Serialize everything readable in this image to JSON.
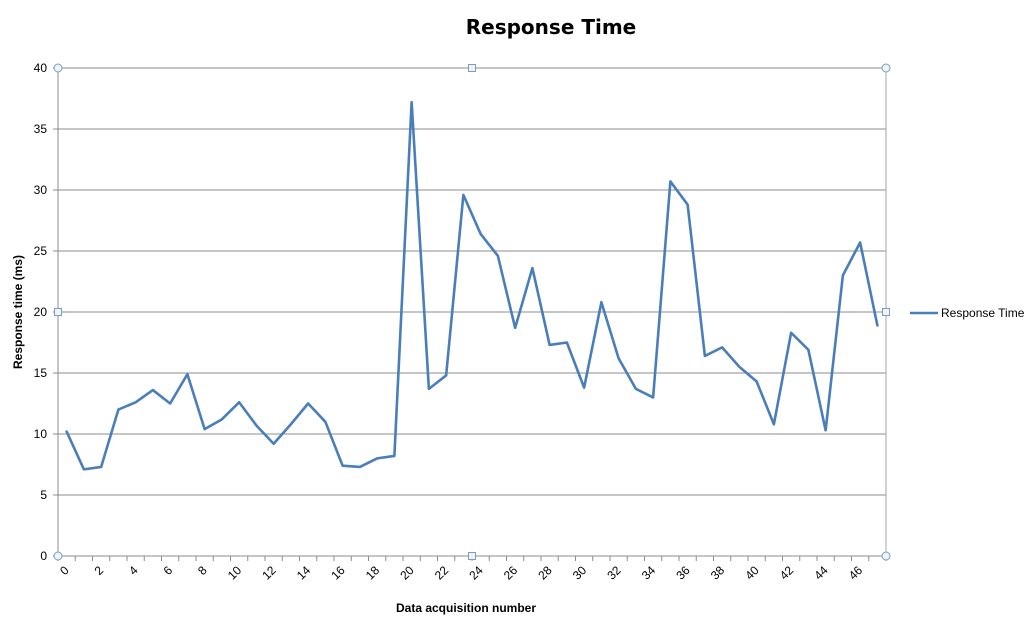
{
  "chart_data": {
    "type": "line",
    "title": "Response Time",
    "xlabel": "Data acquisition number",
    "ylabel": "Response time (ms)",
    "ylim": [
      0,
      40
    ],
    "yticks": [
      0,
      5,
      10,
      15,
      20,
      25,
      30,
      35,
      40
    ],
    "xticks": [
      0,
      2,
      4,
      6,
      8,
      10,
      12,
      14,
      16,
      18,
      20,
      22,
      24,
      26,
      28,
      30,
      32,
      34,
      36,
      38,
      40,
      42,
      44,
      46
    ],
    "grid": true,
    "legend_position": "right",
    "x": [
      0,
      1,
      2,
      3,
      4,
      5,
      6,
      7,
      8,
      9,
      10,
      11,
      12,
      13,
      14,
      15,
      16,
      17,
      18,
      19,
      20,
      21,
      22,
      23,
      24,
      25,
      26,
      27,
      28,
      29,
      30,
      31,
      32,
      33,
      34,
      35,
      36,
      37,
      38,
      39,
      40,
      41,
      42,
      43,
      44,
      45,
      46,
      47
    ],
    "series": [
      {
        "name": "Response Time",
        "color": "#4a7ebb",
        "values": [
          10.2,
          7.1,
          7.3,
          12.0,
          12.6,
          13.6,
          12.5,
          14.9,
          10.4,
          11.2,
          12.6,
          10.7,
          9.2,
          10.8,
          12.5,
          11.0,
          7.4,
          7.3,
          8.0,
          8.2,
          37.2,
          13.7,
          14.8,
          29.6,
          26.4,
          24.6,
          18.7,
          23.6,
          17.3,
          17.5,
          13.8,
          20.8,
          16.2,
          13.7,
          13.0,
          30.7,
          28.8,
          16.4,
          17.1,
          15.5,
          14.3,
          10.8,
          18.3,
          16.9,
          10.3,
          23.0,
          25.7,
          18.9
        ]
      }
    ]
  }
}
